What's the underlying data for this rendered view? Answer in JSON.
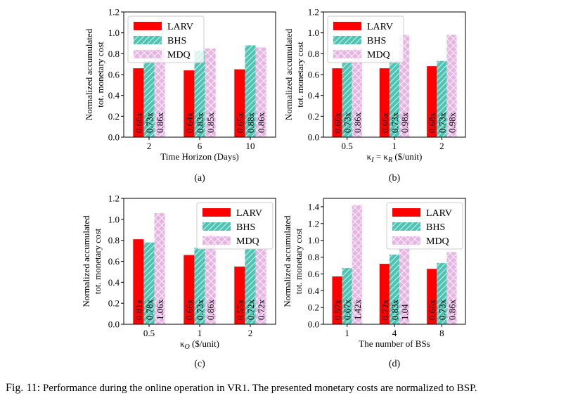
{
  "caption": {
    "label": "Fig. 11:",
    "text": "Performance during the online operation in VR1. The presented monetary costs are normalized to BSP."
  },
  "colors": {
    "LARV": "#ff0000",
    "BHS": "#4ec5b4",
    "MDQ": "#e8b4e4"
  },
  "chart_data": [
    {
      "type": "bar",
      "panel_label": "(a)",
      "xlabel": "Time Horizon (Days)",
      "ylabel": [
        "Normalized accumulated",
        "tot. monetary cost"
      ],
      "ylim": [
        0,
        1.2
      ],
      "yticks": [
        "0.0",
        "0.2",
        "0.4",
        "0.6",
        "0.8",
        "1.0",
        "1.2"
      ],
      "categories": [
        "2",
        "6",
        "10"
      ],
      "legend_position": "upper-left",
      "series": [
        {
          "name": "LARV",
          "values": [
            0.66,
            0.64,
            0.65
          ],
          "labels": [
            "0.66x",
            "0.64x",
            "0.65x"
          ]
        },
        {
          "name": "BHS",
          "values": [
            0.73,
            0.83,
            0.88
          ],
          "labels": [
            "0.73x",
            "0.83x",
            "0.88x"
          ]
        },
        {
          "name": "MDQ",
          "values": [
            0.86,
            0.85,
            0.86
          ],
          "labels": [
            "0.86x",
            "0.85x",
            "0.86x"
          ]
        }
      ]
    },
    {
      "type": "bar",
      "panel_label": "(b)",
      "xlabel": "κI = κR ($/unit)",
      "ylabel": [
        "Normalized accumulated",
        "tot. monetary cost"
      ],
      "ylim": [
        0,
        1.2
      ],
      "yticks": [
        "0.0",
        "0.2",
        "0.4",
        "0.6",
        "0.8",
        "1.0",
        "1.2"
      ],
      "categories": [
        "0.5",
        "1",
        "2"
      ],
      "legend_position": "upper-left",
      "series": [
        {
          "name": "LARV",
          "values": [
            0.66,
            0.66,
            0.68
          ],
          "labels": [
            "0.66x",
            "0.66x",
            "0.68x"
          ]
        },
        {
          "name": "BHS",
          "values": [
            0.73,
            0.73,
            0.73
          ],
          "labels": [
            "0.73x",
            "0.73x",
            "0.73x"
          ]
        },
        {
          "name": "MDQ",
          "values": [
            0.86,
            0.98,
            0.98
          ],
          "labels": [
            "0.86x",
            "0.98x",
            "0.98x"
          ]
        }
      ]
    },
    {
      "type": "bar",
      "panel_label": "(c)",
      "xlabel": "κO ($/unit)",
      "ylabel": [
        "Normalized accumulated",
        "tot. monetary cost"
      ],
      "ylim": [
        0,
        1.2
      ],
      "yticks": [
        "0.0",
        "0.2",
        "0.4",
        "0.6",
        "0.8",
        "1.0",
        "1.2"
      ],
      "categories": [
        "0.5",
        "1",
        "2"
      ],
      "legend_position": "upper-right",
      "series": [
        {
          "name": "LARV",
          "values": [
            0.81,
            0.66,
            0.55
          ],
          "labels": [
            "0.81x",
            "0.66x",
            "0.55x"
          ]
        },
        {
          "name": "BHS",
          "values": [
            0.78,
            0.73,
            0.72
          ],
          "labels": [
            "0.78x",
            "0.73x",
            "0.72x"
          ]
        },
        {
          "name": "MDQ",
          "values": [
            1.06,
            0.86,
            0.72
          ],
          "labels": [
            "1.06x",
            "0.86x",
            "0.72x"
          ]
        }
      ]
    },
    {
      "type": "bar",
      "panel_label": "(d)",
      "xlabel": "The number of BSs",
      "ylabel": [
        "Normalized accumulated",
        "tot. monetary cost"
      ],
      "ylim": [
        0,
        1.5
      ],
      "yticks": [
        "0.0",
        "0.2",
        "0.4",
        "0.6",
        "0.8",
        "1.0",
        "1.2",
        "1.4"
      ],
      "categories": [
        "1",
        "4",
        "8"
      ],
      "legend_position": "upper-right",
      "series": [
        {
          "name": "LARV",
          "values": [
            0.57,
            0.72,
            0.66
          ],
          "labels": [
            "0.57x",
            "0.72x",
            "0.66x"
          ]
        },
        {
          "name": "BHS",
          "values": [
            0.67,
            0.83,
            0.73
          ],
          "labels": [
            "0.67x",
            "0.83x",
            "0.73x"
          ]
        },
        {
          "name": "MDQ",
          "values": [
            1.42,
            1.04,
            0.86
          ],
          "labels": [
            "1.42x",
            "1.04",
            "0.86x"
          ]
        }
      ]
    }
  ]
}
